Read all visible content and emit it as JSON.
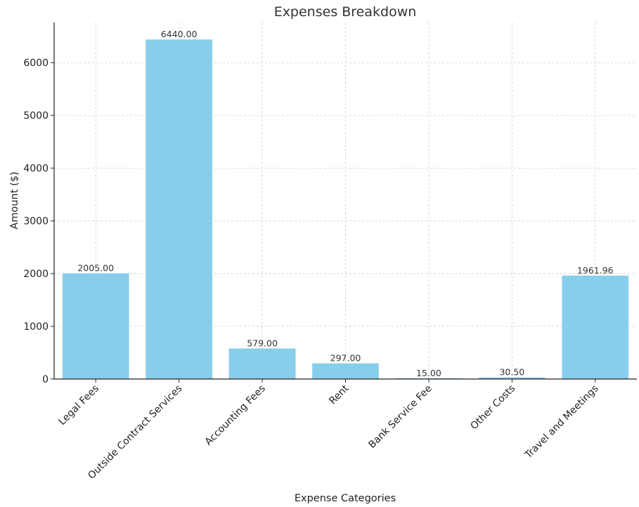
{
  "chart_data": {
    "type": "bar",
    "title": "Expenses Breakdown",
    "xlabel": "Expense Categories",
    "ylabel": "Amount ($)",
    "categories": [
      "Legal Fees",
      "Outside Contract Services",
      "Accounting Fees",
      "Rent",
      "Bank Service Fee",
      "Other Costs",
      "Travel and Meetings"
    ],
    "values": [
      2005.0,
      6440.0,
      579.0,
      297.0,
      15.0,
      30.5,
      1961.96
    ],
    "value_labels": [
      "2005.00",
      "6440.00",
      "579.00",
      "297.00",
      "15.00",
      "30.50",
      "1961.96"
    ],
    "ylim": [
      0,
      6762
    ],
    "yticks": [
      0,
      1000,
      2000,
      3000,
      4000,
      5000,
      6000
    ],
    "grid": true,
    "bar_color": "#87ceeb"
  }
}
